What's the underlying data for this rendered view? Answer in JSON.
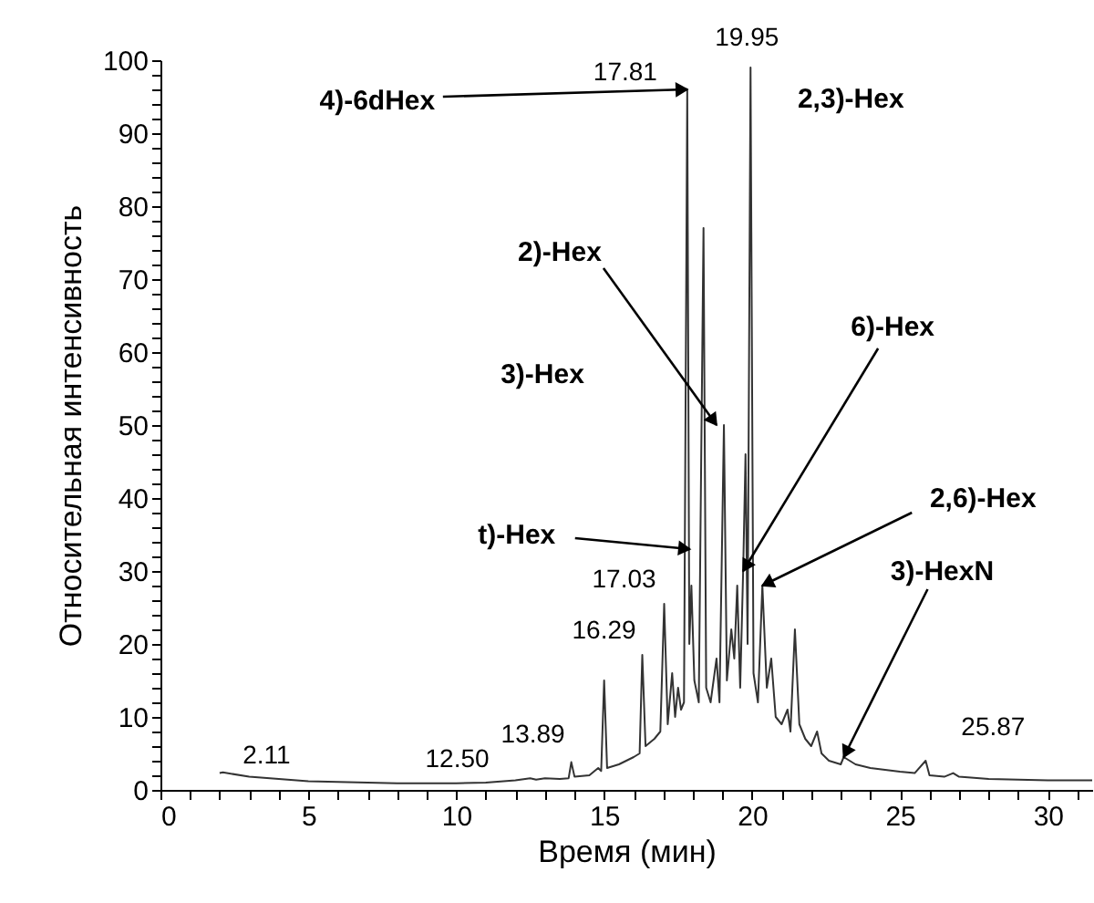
{
  "chart_data": {
    "type": "line",
    "xlabel": "Время (мин)",
    "ylabel": "Относительная интенсивность",
    "x": [
      2.0,
      2.11,
      3,
      5,
      8,
      10,
      11,
      12,
      12.5,
      12.7,
      13,
      13.5,
      13.8,
      13.89,
      14.0,
      14.5,
      14.8,
      14.9,
      15.0,
      15.1,
      15.5,
      16.0,
      16.2,
      16.29,
      16.4,
      16.7,
      16.9,
      17.03,
      17.15,
      17.3,
      17.4,
      17.5,
      17.6,
      17.7,
      17.81,
      17.88,
      17.95,
      18.05,
      18.2,
      18.36,
      18.45,
      18.6,
      18.8,
      18.9,
      19.05,
      19.15,
      19.3,
      19.4,
      19.5,
      19.6,
      19.7,
      19.78,
      19.85,
      19.95,
      20.05,
      20.2,
      20.35,
      20.5,
      20.65,
      20.8,
      21.0,
      21.2,
      21.3,
      21.45,
      21.6,
      21.8,
      22.0,
      22.2,
      22.35,
      22.6,
      23.0,
      23.1,
      23.5,
      24.0,
      25.0,
      25.5,
      25.87,
      26.0,
      26.5,
      26.8,
      27,
      28,
      29,
      30,
      31.5
    ],
    "series": [
      {
        "color": "#333333",
        "values": [
          2.3,
          2.4,
          1.8,
          1.2,
          0.9,
          0.9,
          1.0,
          1.3,
          1.6,
          1.4,
          1.6,
          1.5,
          1.6,
          3.8,
          1.8,
          2.0,
          3.0,
          2.6,
          15,
          3,
          3.5,
          4.5,
          5,
          18.5,
          6,
          7,
          8,
          25.5,
          9,
          16,
          10,
          14,
          11,
          12,
          96,
          20,
          28,
          15,
          12,
          77,
          14,
          12,
          18,
          12,
          50,
          15,
          22,
          18,
          28,
          14,
          30,
          46,
          20,
          99,
          16,
          12,
          28,
          14,
          18,
          10,
          9,
          11,
          8,
          22,
          9,
          7,
          6,
          8,
          5,
          4,
          3.5,
          4.5,
          3.5,
          3,
          2.5,
          2.3,
          4,
          2,
          1.8,
          2.3,
          1.8,
          1.5,
          1.4,
          1.3,
          1.3
        ]
      }
    ],
    "xlim": [
      0,
      31.5
    ],
    "ylim": [
      0,
      100
    ],
    "xticks": [
      0,
      {
        "value": 1,
        "label": null
      },
      {
        "value": 2,
        "label": null
      },
      {
        "value": 3,
        "label": null
      },
      {
        "value": 4,
        "label": null
      },
      5,
      {
        "value": 6,
        "label": null
      },
      {
        "value": 7,
        "label": null
      },
      {
        "value": 8,
        "label": null
      },
      {
        "value": 9,
        "label": null
      },
      10,
      {
        "value": 11,
        "label": null
      },
      {
        "value": 12,
        "label": null
      },
      {
        "value": 13,
        "label": null
      },
      {
        "value": 14,
        "label": null
      },
      15,
      {
        "value": 16,
        "label": null
      },
      {
        "value": 17,
        "label": null
      },
      {
        "value": 18,
        "label": null
      },
      {
        "value": 19,
        "label": null
      },
      20,
      {
        "value": 21,
        "label": null
      },
      {
        "value": 22,
        "label": null
      },
      {
        "value": 23,
        "label": null
      },
      {
        "value": 24,
        "label": null
      },
      25,
      {
        "value": 26,
        "label": null
      },
      {
        "value": 27,
        "label": null
      },
      {
        "value": 28,
        "label": null
      },
      {
        "value": 29,
        "label": null
      },
      30,
      {
        "value": 31,
        "label": null
      }
    ],
    "yticks": [
      0,
      {
        "value": 2,
        "label": null
      },
      {
        "value": 4,
        "label": null
      },
      {
        "value": 6,
        "label": null
      },
      {
        "value": 8,
        "label": null
      },
      10,
      {
        "value": 12,
        "label": null
      },
      {
        "value": 14,
        "label": null
      },
      {
        "value": 16,
        "label": null
      },
      {
        "value": 18,
        "label": null
      },
      20,
      {
        "value": 22,
        "label": null
      },
      {
        "value": 24,
        "label": null
      },
      {
        "value": 26,
        "label": null
      },
      {
        "value": 28,
        "label": null
      },
      30,
      {
        "value": 32,
        "label": null
      },
      {
        "value": 34,
        "label": null
      },
      {
        "value": 36,
        "label": null
      },
      {
        "value": 38,
        "label": null
      },
      40,
      {
        "value": 42,
        "label": null
      },
      {
        "value": 44,
        "label": null
      },
      {
        "value": 46,
        "label": null
      },
      {
        "value": 48,
        "label": null
      },
      50,
      {
        "value": 52,
        "label": null
      },
      {
        "value": 54,
        "label": null
      },
      {
        "value": 56,
        "label": null
      },
      {
        "value": 58,
        "label": null
      },
      60,
      {
        "value": 62,
        "label": null
      },
      {
        "value": 64,
        "label": null
      },
      {
        "value": 66,
        "label": null
      },
      {
        "value": 68,
        "label": null
      },
      70,
      {
        "value": 72,
        "label": null
      },
      {
        "value": 74,
        "label": null
      },
      {
        "value": 76,
        "label": null
      },
      {
        "value": 78,
        "label": null
      },
      80,
      {
        "value": 82,
        "label": null
      },
      {
        "value": 84,
        "label": null
      },
      {
        "value": 86,
        "label": null
      },
      {
        "value": 88,
        "label": null
      },
      90,
      {
        "value": 92,
        "label": null
      },
      {
        "value": 94,
        "label": null
      },
      {
        "value": 96,
        "label": null
      },
      {
        "value": 98,
        "label": null
      },
      100
    ],
    "grid": false,
    "marker": "none",
    "line_style": "solid",
    "annotations": [
      {
        "text": "17.81",
        "x": 17.81,
        "y": 96
      },
      {
        "text": "19.95",
        "x": 19.95,
        "y": 99
      },
      {
        "text": "4)-6dHex",
        "x": 17.81,
        "y": 96
      },
      {
        "text": "2,3)-Hex",
        "x": 19.95,
        "y": 90
      },
      {
        "text": "2)-Hex",
        "x": 18.8,
        "y": 50
      },
      "3)-Hex",
      {
        "text": "6)-Hex",
        "x": 19.7,
        "y": 30
      },
      {
        "text": "2,6)-Hex",
        "x": 20.35,
        "y": 28
      },
      {
        "text": "t)-Hex",
        "x": 17.9,
        "y": 33
      },
      {
        "text": "3)-HexN",
        "x": 23.1,
        "y": 4.5
      },
      {
        "text": "17.03",
        "x": 17.03,
        "y": 25.5
      },
      {
        "text": "16.29",
        "x": 16.29,
        "y": 18.5
      },
      {
        "text": "13.89",
        "x": 13.89,
        "y": 3.8
      },
      {
        "text": "12.50",
        "x": 12.5,
        "y": 1.6
      },
      {
        "text": "2.11",
        "x": 2.11,
        "y": 2.4
      },
      {
        "text": "25.87",
        "x": 25.87,
        "y": 4
      }
    ]
  }
}
